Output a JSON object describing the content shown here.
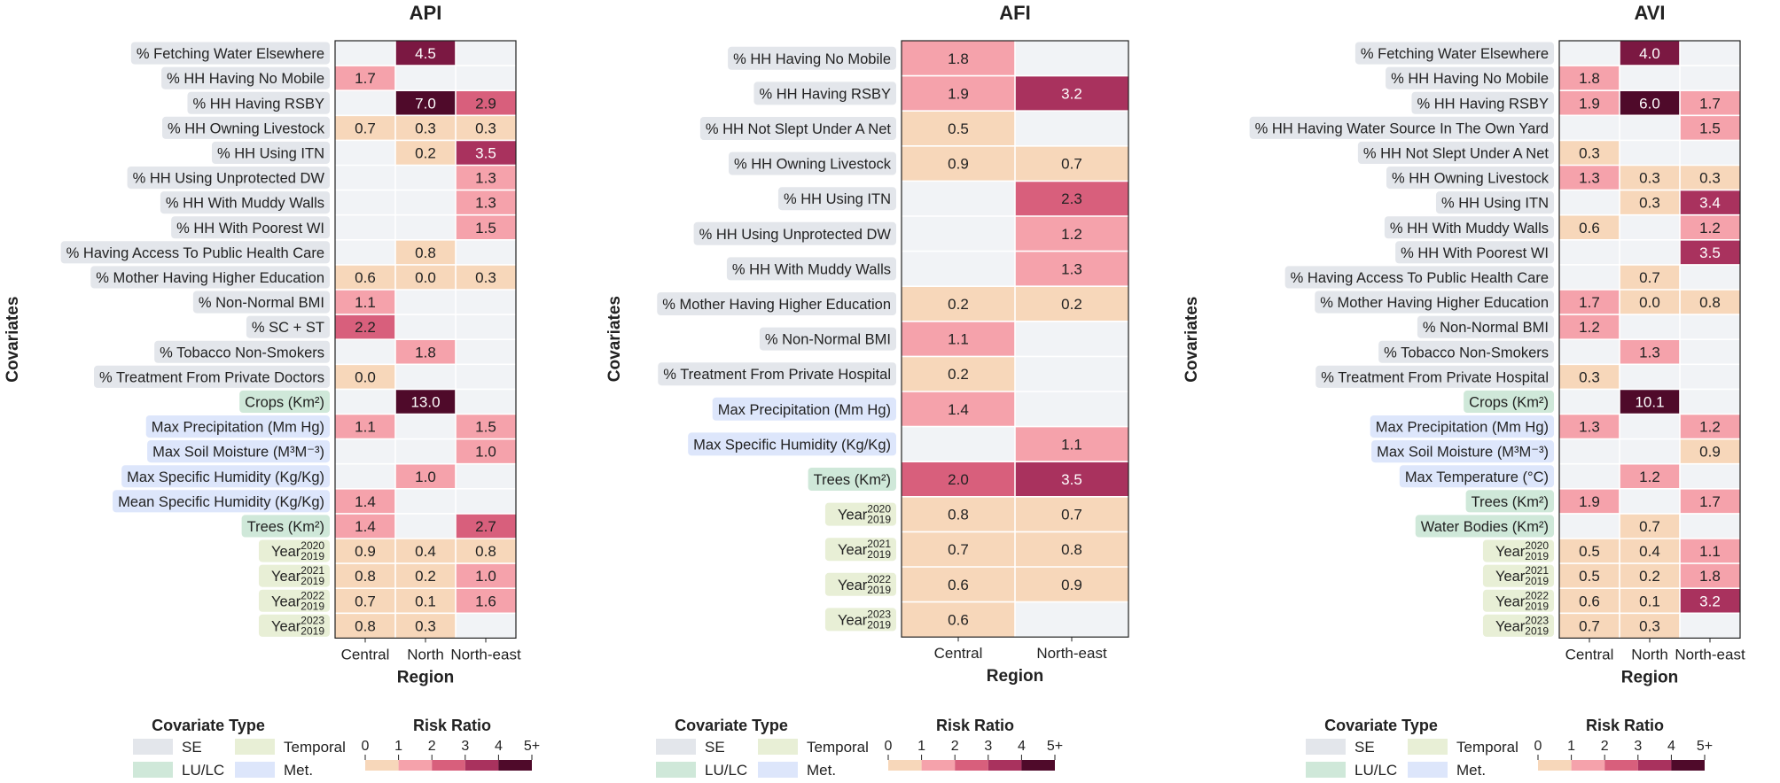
{
  "covariate_colors": {
    "SE": "#e3e6eb",
    "LU/LC": "#cfe8d9",
    "Temporal": "#e8efd6",
    "Met.": "#dde6fb"
  },
  "empty_cell_color": "#f1f3f6",
  "risk_colors": [
    "#f7d7ba",
    "#f5a2ab",
    "#d85f7c",
    "#a9325e",
    "#7b1842",
    "#4f0a2a"
  ],
  "chart_data": [
    {
      "type": "heatmap",
      "title": "API",
      "xlabel": "Region",
      "ylabel": "Covariates",
      "categories": [
        "Central",
        "North",
        "North-east"
      ],
      "rows": [
        {
          "label": "% Fetching Water Elsewhere",
          "group": "SE",
          "values": [
            null,
            4.5,
            null
          ]
        },
        {
          "label": "% HH Having No Mobile",
          "group": "SE",
          "values": [
            1.7,
            null,
            null
          ]
        },
        {
          "label": "% HH Having RSBY",
          "group": "SE",
          "values": [
            null,
            7.0,
            2.9
          ]
        },
        {
          "label": "% HH Owning Livestock",
          "group": "SE",
          "values": [
            0.7,
            0.3,
            0.3
          ]
        },
        {
          "label": "% HH Using ITN",
          "group": "SE",
          "values": [
            null,
            0.2,
            3.5
          ]
        },
        {
          "label": "% HH Using Unprotected DW",
          "group": "SE",
          "values": [
            null,
            null,
            1.3
          ]
        },
        {
          "label": "% HH With Muddy Walls",
          "group": "SE",
          "values": [
            null,
            null,
            1.3
          ]
        },
        {
          "label": "% HH With Poorest WI",
          "group": "SE",
          "values": [
            null,
            null,
            1.5
          ]
        },
        {
          "label": "% Having Access To Public Health Care",
          "group": "SE",
          "values": [
            null,
            0.8,
            null
          ]
        },
        {
          "label": "% Mother Having Higher Education",
          "group": "SE",
          "values": [
            0.6,
            0.0,
            0.3
          ]
        },
        {
          "label": "% Non-Normal BMI",
          "group": "SE",
          "values": [
            1.1,
            null,
            null
          ]
        },
        {
          "label": "% SC + ST",
          "group": "SE",
          "values": [
            2.2,
            null,
            null
          ]
        },
        {
          "label": "% Tobacco Non-Smokers",
          "group": "SE",
          "values": [
            null,
            1.8,
            null
          ]
        },
        {
          "label": "% Treatment From Private Doctors",
          "group": "SE",
          "values": [
            0.0,
            null,
            null
          ]
        },
        {
          "label": "Crops (Km²)",
          "group": "LU/LC",
          "values": [
            null,
            13.0,
            null
          ]
        },
        {
          "label": "Max Precipitation (Mm Hg)",
          "group": "Met.",
          "values": [
            1.1,
            null,
            1.5
          ]
        },
        {
          "label": "Max Soil Moisture (M³M⁻³)",
          "group": "Met.",
          "values": [
            null,
            null,
            1.0
          ]
        },
        {
          "label": "Max Specific Humidity (Kg/Kg)",
          "group": "Met.",
          "values": [
            null,
            1.0,
            null
          ]
        },
        {
          "label": "Mean Specific Humidity (Kg/Kg)",
          "group": "Met.",
          "values": [
            1.4,
            null,
            null
          ]
        },
        {
          "label": "Trees (Km²)",
          "group": "LU/LC",
          "values": [
            1.4,
            null,
            2.7
          ]
        },
        {
          "label": "Year",
          "sup": "2020",
          "sub": "2019",
          "group": "Temporal",
          "values": [
            0.9,
            0.4,
            0.8
          ]
        },
        {
          "label": "Year",
          "sup": "2021",
          "sub": "2019",
          "group": "Temporal",
          "values": [
            0.8,
            0.2,
            1.0
          ]
        },
        {
          "label": "Year",
          "sup": "2022",
          "sub": "2019",
          "group": "Temporal",
          "values": [
            0.7,
            0.1,
            1.6
          ]
        },
        {
          "label": "Year",
          "sup": "2023",
          "sub": "2019",
          "group": "Temporal",
          "values": [
            0.8,
            0.3,
            null
          ]
        }
      ],
      "legend": {
        "type_title": "Covariate Type",
        "types": [
          "SE",
          "Temporal",
          "LU/LC",
          "Met."
        ],
        "risk_title": "Risk Ratio",
        "risk_ticks": [
          "0",
          "1",
          "2",
          "3",
          "4",
          "5+"
        ]
      }
    },
    {
      "type": "heatmap",
      "title": "AFI",
      "xlabel": "Region",
      "ylabel": "Covariates",
      "categories": [
        "Central",
        "North-east"
      ],
      "rows": [
        {
          "label": "% HH Having No Mobile",
          "group": "SE",
          "values": [
            1.8,
            null
          ]
        },
        {
          "label": "% HH Having RSBY",
          "group": "SE",
          "values": [
            1.9,
            3.2
          ]
        },
        {
          "label": "% HH Not Slept Under A Net",
          "group": "SE",
          "values": [
            0.5,
            null
          ]
        },
        {
          "label": "% HH Owning Livestock",
          "group": "SE",
          "values": [
            0.9,
            0.7
          ]
        },
        {
          "label": "% HH Using ITN",
          "group": "SE",
          "values": [
            null,
            2.3
          ]
        },
        {
          "label": "% HH Using Unprotected DW",
          "group": "SE",
          "values": [
            null,
            1.2
          ]
        },
        {
          "label": "% HH With Muddy Walls",
          "group": "SE",
          "values": [
            null,
            1.3
          ]
        },
        {
          "label": "% Mother Having Higher Education",
          "group": "SE",
          "values": [
            0.2,
            0.2
          ]
        },
        {
          "label": "% Non-Normal BMI",
          "group": "SE",
          "values": [
            1.1,
            null
          ]
        },
        {
          "label": "% Treatment From Private Hospital",
          "group": "SE",
          "values": [
            0.2,
            null
          ]
        },
        {
          "label": "Max Precipitation (Mm Hg)",
          "group": "Met.",
          "values": [
            1.4,
            null
          ]
        },
        {
          "label": "Max Specific Humidity (Kg/Kg)",
          "group": "Met.",
          "values": [
            null,
            1.1
          ]
        },
        {
          "label": "Trees (Km²)",
          "group": "LU/LC",
          "values": [
            2.0,
            3.5
          ]
        },
        {
          "label": "Year",
          "sup": "2020",
          "sub": "2019",
          "group": "Temporal",
          "values": [
            0.8,
            0.7
          ]
        },
        {
          "label": "Year",
          "sup": "2021",
          "sub": "2019",
          "group": "Temporal",
          "values": [
            0.7,
            0.8
          ]
        },
        {
          "label": "Year",
          "sup": "2022",
          "sub": "2019",
          "group": "Temporal",
          "values": [
            0.6,
            0.9
          ]
        },
        {
          "label": "Year",
          "sup": "2023",
          "sub": "2019",
          "group": "Temporal",
          "values": [
            0.6,
            null
          ]
        }
      ],
      "legend": {
        "type_title": "Covariate Type",
        "types": [
          "SE",
          "Temporal",
          "LU/LC",
          "Met."
        ],
        "risk_title": "Risk Ratio",
        "risk_ticks": [
          "0",
          "1",
          "2",
          "3",
          "4",
          "5+"
        ]
      }
    },
    {
      "type": "heatmap",
      "title": "AVI",
      "xlabel": "Region",
      "ylabel": "Covariates",
      "categories": [
        "Central",
        "North",
        "North-east"
      ],
      "rows": [
        {
          "label": "% Fetching Water Elsewhere",
          "group": "SE",
          "values": [
            null,
            4.0,
            null
          ]
        },
        {
          "label": "% HH Having No Mobile",
          "group": "SE",
          "values": [
            1.8,
            null,
            null
          ]
        },
        {
          "label": "% HH Having RSBY",
          "group": "SE",
          "values": [
            1.9,
            6.0,
            1.7
          ]
        },
        {
          "label": "% HH Having Water Source In The Own Yard",
          "group": "SE",
          "values": [
            null,
            null,
            1.5
          ]
        },
        {
          "label": "% HH Not Slept Under A Net",
          "group": "SE",
          "values": [
            0.3,
            null,
            null
          ]
        },
        {
          "label": "% HH Owning Livestock",
          "group": "SE",
          "values": [
            1.3,
            0.3,
            0.3
          ]
        },
        {
          "label": "% HH Using ITN",
          "group": "SE",
          "values": [
            null,
            0.3,
            3.4
          ]
        },
        {
          "label": "% HH With Muddy Walls",
          "group": "SE",
          "values": [
            0.6,
            null,
            1.2
          ]
        },
        {
          "label": "% HH With Poorest WI",
          "group": "SE",
          "values": [
            null,
            null,
            3.5
          ]
        },
        {
          "label": "% Having Access To Public Health Care",
          "group": "SE",
          "values": [
            null,
            0.7,
            null
          ]
        },
        {
          "label": "% Mother Having Higher Education",
          "group": "SE",
          "values": [
            1.7,
            0.0,
            0.8
          ]
        },
        {
          "label": "% Non-Normal BMI",
          "group": "SE",
          "values": [
            1.2,
            null,
            null
          ]
        },
        {
          "label": "% Tobacco Non-Smokers",
          "group": "SE",
          "values": [
            null,
            1.3,
            null
          ]
        },
        {
          "label": "% Treatment From Private Hospital",
          "group": "SE",
          "values": [
            0.3,
            null,
            null
          ]
        },
        {
          "label": "Crops (Km²)",
          "group": "LU/LC",
          "values": [
            null,
            10.1,
            null
          ]
        },
        {
          "label": "Max Precipitation (Mm Hg)",
          "group": "Met.",
          "values": [
            1.3,
            null,
            1.2
          ]
        },
        {
          "label": "Max Soil Moisture (M³M⁻³)",
          "group": "Met.",
          "values": [
            null,
            null,
            0.9
          ]
        },
        {
          "label": "Max Temperature (°C)",
          "group": "Met.",
          "values": [
            null,
            1.2,
            null
          ]
        },
        {
          "label": "Trees (Km²)",
          "group": "LU/LC",
          "values": [
            1.9,
            null,
            1.7
          ]
        },
        {
          "label": "Water Bodies (Km²)",
          "group": "LU/LC",
          "values": [
            null,
            0.7,
            null
          ]
        },
        {
          "label": "Year",
          "sup": "2020",
          "sub": "2019",
          "group": "Temporal",
          "values": [
            0.5,
            0.4,
            1.1
          ]
        },
        {
          "label": "Year",
          "sup": "2021",
          "sub": "2019",
          "group": "Temporal",
          "values": [
            0.5,
            0.2,
            1.8
          ]
        },
        {
          "label": "Year",
          "sup": "2022",
          "sub": "2019",
          "group": "Temporal",
          "values": [
            0.6,
            0.1,
            3.2
          ]
        },
        {
          "label": "Year",
          "sup": "2023",
          "sub": "2019",
          "group": "Temporal",
          "values": [
            0.7,
            0.3,
            null
          ]
        }
      ],
      "legend": {
        "type_title": "Covariate Type",
        "types": [
          "SE",
          "Temporal",
          "LU/LC",
          "Met."
        ],
        "risk_title": "Risk Ratio",
        "risk_ticks": [
          "0",
          "1",
          "2",
          "3",
          "4",
          "5+"
        ]
      }
    }
  ]
}
